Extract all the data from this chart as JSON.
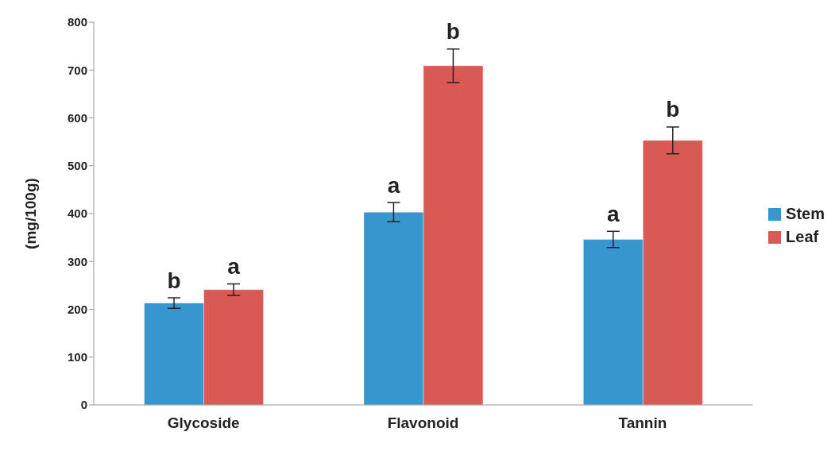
{
  "chart_data": {
    "type": "bar",
    "ylabel": "(mg/100g)",
    "categories": [
      "Glycoside",
      "Flavonoid",
      "Tannin"
    ],
    "series": [
      {
        "name": "Stem",
        "color": "#3796cd",
        "values": [
          213,
          403,
          346
        ],
        "errors": [
          11,
          20,
          17
        ]
      },
      {
        "name": "Leaf",
        "color": "#d95a55",
        "values": [
          241,
          709,
          553
        ],
        "errors": [
          12,
          35,
          28
        ]
      }
    ],
    "ylim": [
      0,
      800
    ],
    "yticks": [
      0,
      100,
      200,
      300,
      400,
      500,
      600,
      700,
      800
    ],
    "grid": false,
    "legend": "right",
    "annotations": [
      {
        "text": "b",
        "x": "Glycoside",
        "y": 213
      },
      {
        "text": "a",
        "x": "Glycoside",
        "y": 241
      },
      {
        "text": "a",
        "x": "Flavonoid",
        "y": 403
      },
      {
        "text": "b",
        "x": "Flavonoid",
        "y": 709
      },
      {
        "text": "a",
        "x": "Tannin",
        "y": 346
      },
      {
        "text": "b",
        "x": "Tannin",
        "y": 553
      }
    ]
  }
}
